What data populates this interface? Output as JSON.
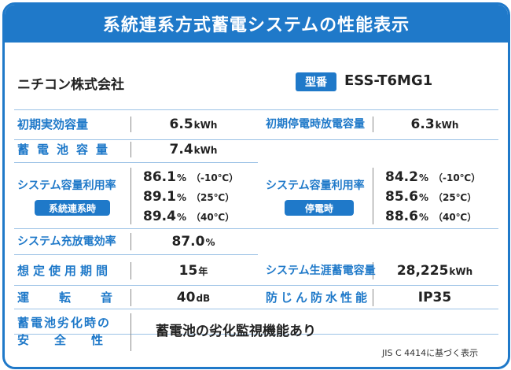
{
  "title": "系統連系方式蓄電システムの性能表示",
  "maker": "ニチコン株式会社",
  "model_badge": "型番",
  "model": "ESS-T6MG1",
  "initial_capacity": {
    "label": "初期実効容量",
    "value": "6.5",
    "unit": "kWh"
  },
  "initial_outage_capacity": {
    "label": "初期停電時放電容量",
    "value": "6.3",
    "unit": "kWh"
  },
  "battery_capacity": {
    "label": "蓄電池容量",
    "value": "7.4",
    "unit": "kWh"
  },
  "utilization_grid": {
    "label": "システム容量利用率",
    "badge": "系統連系時",
    "rows": [
      {
        "value": "86.1",
        "unit": "%",
        "cond": "（-10℃）"
      },
      {
        "value": "89.1",
        "unit": "%",
        "cond": "（25℃）"
      },
      {
        "value": "89.4",
        "unit": "%",
        "cond": "（40℃）"
      }
    ]
  },
  "utilization_outage": {
    "label": "システム容量利用率",
    "badge": "停電時",
    "rows": [
      {
        "value": "84.2",
        "unit": "%",
        "cond": "（-10℃）"
      },
      {
        "value": "85.6",
        "unit": "%",
        "cond": "（25℃）"
      },
      {
        "value": "88.6",
        "unit": "%",
        "cond": "（40℃）"
      }
    ]
  },
  "charge_efficiency": {
    "label": "システム充放電効率",
    "value": "87.0",
    "unit": "%"
  },
  "service_life": {
    "label": "想定使用期間",
    "value": "15",
    "unit": "年"
  },
  "lifetime_storage": {
    "label": "システム生涯蓄電容量",
    "value": "28,225",
    "unit": "kWh"
  },
  "noise": {
    "label": "運転音",
    "value": "40",
    "unit": "dB"
  },
  "waterproof": {
    "label": "防じん防水性能",
    "value": "IP35"
  },
  "degradation_safety": {
    "label_line1": "蓄電池劣化時の",
    "label_line2": "安全性",
    "value": "蓄電池の劣化監視機能あり"
  },
  "footnote": "JIS C 4414に基づく表示",
  "colors": {
    "accent": "#1f79c9",
    "divider": "#9cc2e6"
  }
}
